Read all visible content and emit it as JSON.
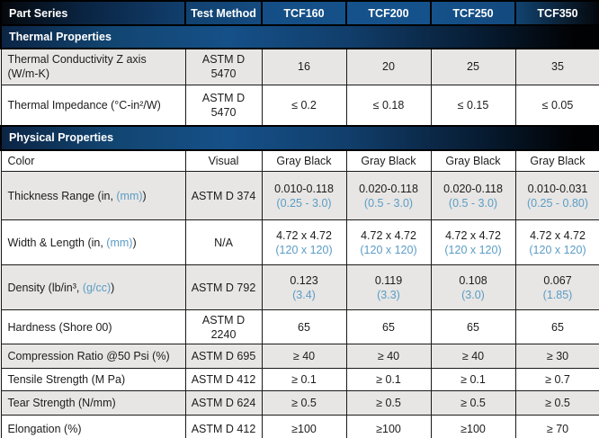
{
  "colors": {
    "accent_blue": "#5b9cc5",
    "header_blue": "#15528b",
    "row_gray": "#e7e6e4",
    "border": "#1a1a1a"
  },
  "header": {
    "part_series": "Part Series",
    "test_method": "Test Method",
    "products": [
      "TCF160",
      "TCF200",
      "TCF250",
      "TCF350"
    ]
  },
  "sections": [
    {
      "title": "Thermal Properties",
      "rows": [
        {
          "label": {
            "pre": "Thermal Conductivity Z axis (W/m-K)",
            "blue": "",
            "post": ""
          },
          "method": "ASTM D",
          "method2": "5470",
          "shaded": true,
          "values": [
            {
              "main": "16",
              "sub": ""
            },
            {
              "main": "20",
              "sub": ""
            },
            {
              "main": "25",
              "sub": ""
            },
            {
              "main": "35",
              "sub": ""
            }
          ]
        },
        {
          "label": {
            "pre": "Thermal Impedance (°C-in²/W)",
            "blue": "",
            "post": ""
          },
          "method": "ASTM D",
          "method2": "5470",
          "shaded": false,
          "values": [
            {
              "main": "≤ 0.2",
              "sub": ""
            },
            {
              "main": "≤ 0.18",
              "sub": ""
            },
            {
              "main": "≤ 0.15",
              "sub": ""
            },
            {
              "main": "≤ 0.05",
              "sub": ""
            }
          ]
        }
      ]
    },
    {
      "title": "Physical Properties",
      "rows": [
        {
          "label": {
            "pre": "Color",
            "blue": "",
            "post": ""
          },
          "method": "Visual",
          "method2": "",
          "shaded": false,
          "values": [
            {
              "main": "Gray Black",
              "sub": ""
            },
            {
              "main": "Gray Black",
              "sub": ""
            },
            {
              "main": "Gray Black",
              "sub": ""
            },
            {
              "main": "Gray Black",
              "sub": ""
            }
          ]
        },
        {
          "label": {
            "pre": "Thickness Range (in, ",
            "blue": "(mm)",
            "post": ")"
          },
          "method": "ASTM D 374",
          "method2": "",
          "shaded": true,
          "values": [
            {
              "main": "0.010-0.118",
              "sub": "(0.25 - 3.0)"
            },
            {
              "main": "0.020-0.118",
              "sub": "(0.5 - 3.0)"
            },
            {
              "main": "0.020-0.118",
              "sub": "(0.5 - 3.0)"
            },
            {
              "main": "0.010-0.031",
              "sub": "(0.25 - 0.80)"
            }
          ]
        },
        {
          "label": {
            "pre": "Width & Length (in, ",
            "blue": "(mm)",
            "post": ")"
          },
          "method": "N/A",
          "method2": "",
          "shaded": false,
          "values": [
            {
              "main": "4.72 x 4.72",
              "sub": "(120 x 120)"
            },
            {
              "main": "4.72 x 4.72",
              "sub": "(120 x 120)"
            },
            {
              "main": "4.72 x 4.72",
              "sub": "(120 x 120)"
            },
            {
              "main": "4.72 x 4.72",
              "sub": "(120 x 120)"
            }
          ]
        },
        {
          "label": {
            "pre": "Density (lb/in³, ",
            "blue": "(g/cc)",
            "post": ")"
          },
          "method": "ASTM D 792",
          "method2": "",
          "shaded": true,
          "values": [
            {
              "main": "0.123",
              "sub": "(3.4)"
            },
            {
              "main": "0.119",
              "sub": "(3.3)"
            },
            {
              "main": "0.108",
              "sub": "(3.0)"
            },
            {
              "main": "0.067",
              "sub": "(1.85)"
            }
          ]
        },
        {
          "label": {
            "pre": "Hardness (Shore 00)",
            "blue": "",
            "post": ""
          },
          "method": "ASTM D",
          "method2": "2240",
          "shaded": false,
          "values": [
            {
              "main": "65",
              "sub": ""
            },
            {
              "main": "65",
              "sub": ""
            },
            {
              "main": "65",
              "sub": ""
            },
            {
              "main": "65",
              "sub": ""
            }
          ]
        },
        {
          "label": {
            "pre": "Compression Ratio @50 Psi (%)",
            "blue": "",
            "post": ""
          },
          "method": "ASTM D 695",
          "method2": "",
          "shaded": true,
          "values": [
            {
              "main": "≥ 40",
              "sub": ""
            },
            {
              "main": "≥ 40",
              "sub": ""
            },
            {
              "main": "≥ 40",
              "sub": ""
            },
            {
              "main": "≥ 30",
              "sub": ""
            }
          ]
        },
        {
          "label": {
            "pre": "Tensile Strength (M Pa)",
            "blue": "",
            "post": ""
          },
          "method": "ASTM D 412",
          "method2": "",
          "shaded": false,
          "values": [
            {
              "main": "≥ 0.1",
              "sub": ""
            },
            {
              "main": "≥ 0.1",
              "sub": ""
            },
            {
              "main": "≥ 0.1",
              "sub": ""
            },
            {
              "main": "≥ 0.7",
              "sub": ""
            }
          ]
        },
        {
          "label": {
            "pre": "Tear Strength (N/mm)",
            "blue": "",
            "post": ""
          },
          "method": "ASTM D 624",
          "method2": "",
          "shaded": true,
          "values": [
            {
              "main": "≥ 0.5",
              "sub": ""
            },
            {
              "main": "≥ 0.5",
              "sub": ""
            },
            {
              "main": "≥ 0.5",
              "sub": ""
            },
            {
              "main": "≥ 0.5",
              "sub": ""
            }
          ]
        },
        {
          "label": {
            "pre": "Elongation (%)",
            "blue": "",
            "post": ""
          },
          "method": "ASTM D 412",
          "method2": "",
          "shaded": false,
          "values": [
            {
              "main": "≥100",
              "sub": ""
            },
            {
              "main": "≥100",
              "sub": ""
            },
            {
              "main": "≥100",
              "sub": ""
            },
            {
              "main": "≥ 70",
              "sub": ""
            }
          ]
        }
      ]
    }
  ]
}
